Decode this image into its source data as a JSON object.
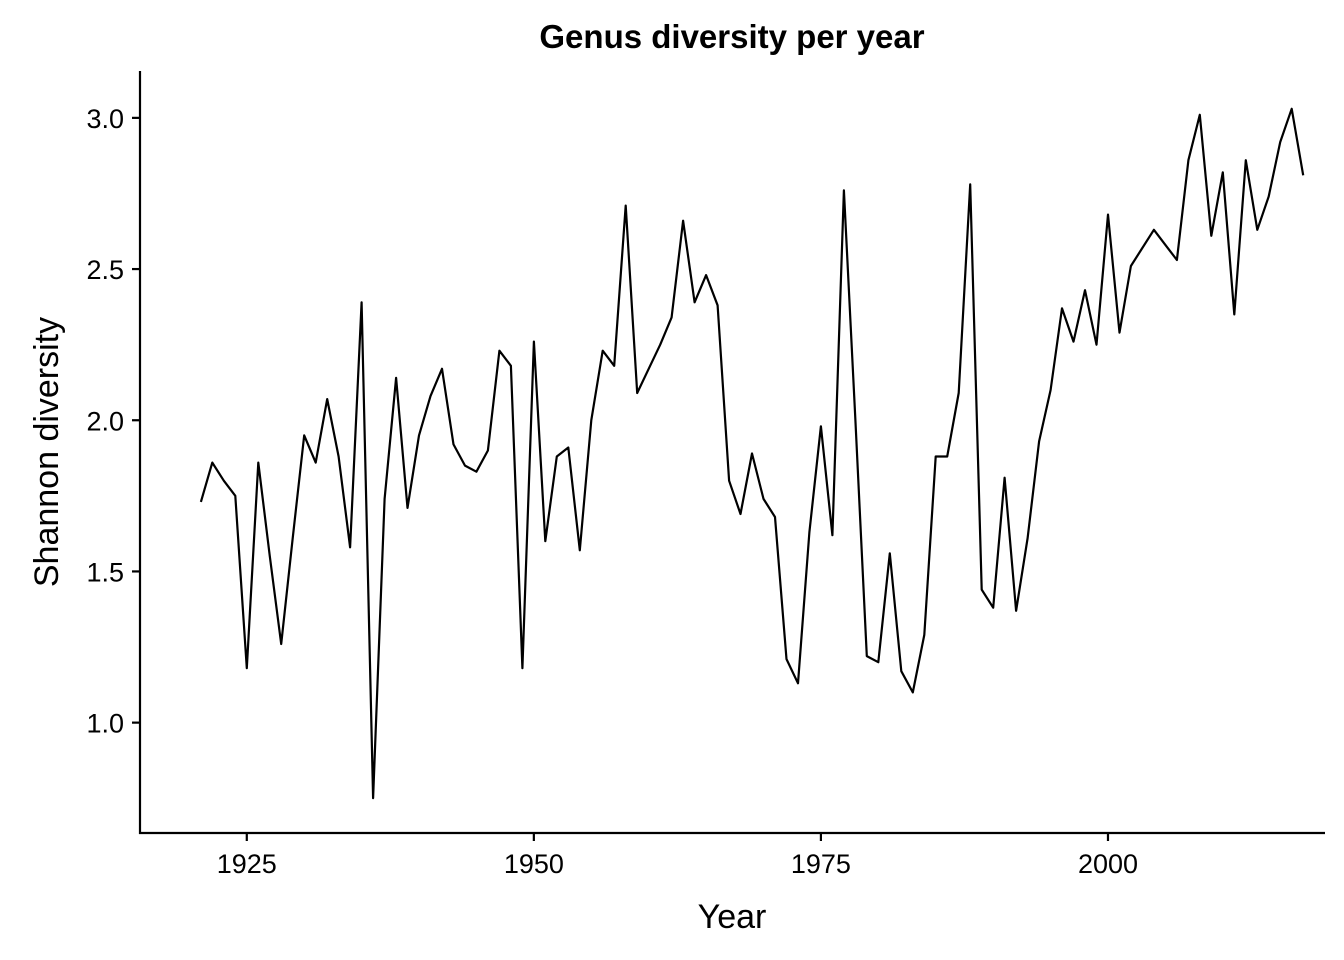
{
  "chart_data": {
    "type": "line",
    "title": "Genus diversity per year",
    "xlabel": "Year",
    "ylabel": "Shannon diversity",
    "xlim": [
      1915.7,
      2018.9
    ],
    "ylim": [
      0.635,
      3.155
    ],
    "x_ticks": [
      1925,
      1950,
      1975,
      2000
    ],
    "x_tick_labels": [
      "1925",
      "1950",
      "1975",
      "2000"
    ],
    "y_ticks": [
      1.0,
      1.5,
      2.0,
      2.5,
      3.0
    ],
    "y_tick_labels": [
      "1.0",
      "1.5",
      "2.0",
      "2.5",
      "3.0"
    ],
    "grid": false,
    "legend": "none",
    "line_color": "#000000",
    "series": [
      {
        "x": [
          1921,
          1922,
          1923,
          1924,
          1925,
          1926,
          1927,
          1928,
          1929,
          1930,
          1931,
          1932,
          1933,
          1934,
          1935,
          1936,
          1937,
          1938,
          1939,
          1940,
          1941,
          1942,
          1943,
          1944,
          1945,
          1946,
          1947,
          1948,
          1949,
          1950,
          1951,
          1952,
          1953,
          1954,
          1955,
          1956,
          1957,
          1958,
          1959,
          1960,
          1961,
          1962,
          1963,
          1964,
          1965,
          1966,
          1967,
          1968,
          1969,
          1970,
          1971,
          1972,
          1973,
          1974,
          1975,
          1976,
          1977,
          1978,
          1979,
          1980,
          1981,
          1982,
          1983,
          1984,
          1985,
          1986,
          1987,
          1988,
          1989,
          1990,
          1991,
          1992,
          1993,
          1994,
          1995,
          1996,
          1997,
          1998,
          1999,
          2000,
          2001,
          2002,
          2003,
          2004,
          2005,
          2006,
          2007,
          2008,
          2009,
          2010,
          2011,
          2012,
          2013,
          2014,
          2015,
          2016,
          2017
        ],
        "values": [
          1.73,
          1.86,
          1.8,
          1.75,
          1.18,
          1.86,
          1.55,
          1.26,
          1.61,
          1.95,
          1.86,
          2.07,
          1.88,
          1.58,
          2.39,
          0.75,
          1.74,
          2.14,
          1.71,
          1.95,
          2.08,
          2.17,
          1.92,
          1.85,
          1.83,
          1.9,
          2.23,
          2.18,
          1.18,
          2.26,
          1.6,
          1.88,
          1.91,
          1.57,
          2.0,
          2.23,
          2.18,
          2.71,
          2.09,
          2.17,
          2.25,
          2.34,
          2.66,
          2.39,
          2.48,
          2.38,
          1.8,
          1.69,
          1.89,
          1.74,
          1.68,
          1.21,
          1.13,
          1.63,
          1.98,
          1.62,
          2.76,
          2.0,
          1.22,
          1.2,
          1.56,
          1.17,
          1.1,
          1.29,
          1.88,
          1.88,
          2.09,
          2.78,
          1.44,
          1.38,
          1.81,
          1.37,
          1.61,
          1.93,
          2.1,
          2.37,
          2.26,
          2.43,
          2.25,
          2.68,
          2.29,
          2.51,
          2.57,
          2.63,
          2.58,
          2.53,
          2.86,
          3.01,
          2.61,
          2.82,
          2.35,
          2.86,
          2.63,
          2.74,
          2.92,
          3.03,
          2.81
        ]
      }
    ]
  }
}
